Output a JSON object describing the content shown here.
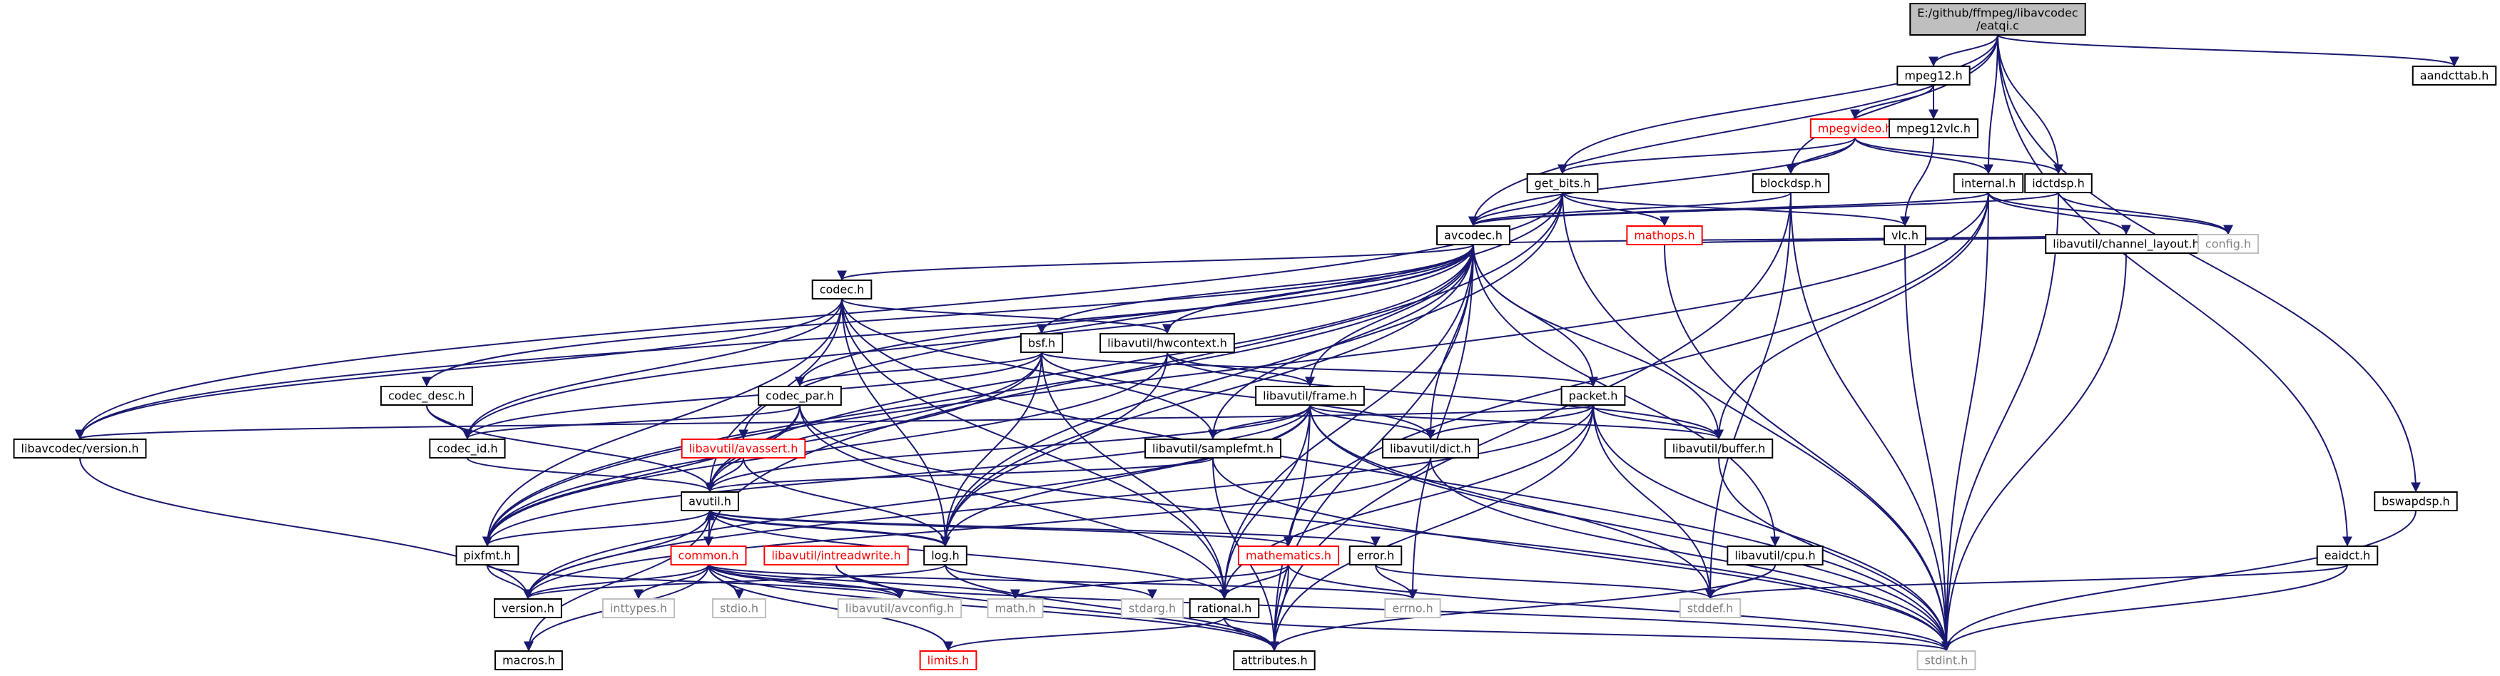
{
  "title": "E:/github/ffmpeg/libavcodec/eatqi.c",
  "colors": {
    "edge": "#191970",
    "root_fill": "#bfbfbf",
    "normal_border": "#000000",
    "truncated_border": "#ff0000",
    "system_border": "#bfbfbf",
    "system_text": "#808080",
    "truncated_text": "#ff0000"
  },
  "nodes": [
    {
      "id": "root",
      "label": [
        "E:/github/ffmpeg/libavcodec",
        "/eatqi.c"
      ],
      "style": "root"
    },
    {
      "id": "mpeg12",
      "label": [
        "mpeg12.h"
      ],
      "style": "normal"
    },
    {
      "id": "aandcttab",
      "label": [
        "aandcttab.h"
      ],
      "style": "normal"
    },
    {
      "id": "mpegvideo",
      "label": [
        "mpegvideo.h"
      ],
      "style": "truncated"
    },
    {
      "id": "mpeg12vlc",
      "label": [
        "mpeg12vlc.h"
      ],
      "style": "normal"
    },
    {
      "id": "get_bits",
      "label": [
        "get_bits.h"
      ],
      "style": "normal"
    },
    {
      "id": "blockdsp",
      "label": [
        "blockdsp.h"
      ],
      "style": "normal"
    },
    {
      "id": "internal",
      "label": [
        "internal.h"
      ],
      "style": "normal"
    },
    {
      "id": "idctdsp",
      "label": [
        "idctdsp.h"
      ],
      "style": "normal"
    },
    {
      "id": "avcodec",
      "label": [
        "avcodec.h"
      ],
      "style": "normal"
    },
    {
      "id": "mathops",
      "label": [
        "mathops.h"
      ],
      "style": "truncated"
    },
    {
      "id": "vlc",
      "label": [
        "vlc.h"
      ],
      "style": "normal"
    },
    {
      "id": "chlayout",
      "label": [
        "libavutil/channel_layout.h"
      ],
      "style": "normal"
    },
    {
      "id": "config",
      "label": [
        "config.h"
      ],
      "style": "system"
    },
    {
      "id": "codec",
      "label": [
        "codec.h"
      ],
      "style": "normal"
    },
    {
      "id": "bsf",
      "label": [
        "bsf.h"
      ],
      "style": "normal"
    },
    {
      "id": "hwcontext",
      "label": [
        "libavutil/hwcontext.h"
      ],
      "style": "normal"
    },
    {
      "id": "codec_desc",
      "label": [
        "codec_desc.h"
      ],
      "style": "normal"
    },
    {
      "id": "codec_par",
      "label": [
        "codec_par.h"
      ],
      "style": "normal"
    },
    {
      "id": "frame",
      "label": [
        "libavutil/frame.h"
      ],
      "style": "normal"
    },
    {
      "id": "packet",
      "label": [
        "packet.h"
      ],
      "style": "normal"
    },
    {
      "id": "lavc_version",
      "label": [
        "libavcodec/version.h"
      ],
      "style": "normal"
    },
    {
      "id": "codec_id",
      "label": [
        "codec_id.h"
      ],
      "style": "normal"
    },
    {
      "id": "avassert",
      "label": [
        "libavutil/avassert.h"
      ],
      "style": "truncated"
    },
    {
      "id": "samplefmt",
      "label": [
        "libavutil/samplefmt.h"
      ],
      "style": "normal"
    },
    {
      "id": "dict",
      "label": [
        "libavutil/dict.h"
      ],
      "style": "normal"
    },
    {
      "id": "buffer",
      "label": [
        "libavutil/buffer.h"
      ],
      "style": "normal"
    },
    {
      "id": "avutil",
      "label": [
        "avutil.h"
      ],
      "style": "normal"
    },
    {
      "id": "pixfmt",
      "label": [
        "pixfmt.h"
      ],
      "style": "normal"
    },
    {
      "id": "common",
      "label": [
        "common.h"
      ],
      "style": "truncated"
    },
    {
      "id": "intreadwrite",
      "label": [
        "libavutil/intreadwrite.h"
      ],
      "style": "truncated"
    },
    {
      "id": "log",
      "label": [
        "log.h"
      ],
      "style": "normal"
    },
    {
      "id": "mathematics",
      "label": [
        "mathematics.h"
      ],
      "style": "truncated"
    },
    {
      "id": "error",
      "label": [
        "error.h"
      ],
      "style": "normal"
    },
    {
      "id": "cpu",
      "label": [
        "libavutil/cpu.h"
      ],
      "style": "normal"
    },
    {
      "id": "eaidct",
      "label": [
        "eaidct.h"
      ],
      "style": "normal"
    },
    {
      "id": "bswapdsp",
      "label": [
        "bswapdsp.h"
      ],
      "style": "normal"
    },
    {
      "id": "version",
      "label": [
        "version.h"
      ],
      "style": "normal"
    },
    {
      "id": "inttypes",
      "label": [
        "inttypes.h"
      ],
      "style": "system"
    },
    {
      "id": "stdio",
      "label": [
        "stdio.h"
      ],
      "style": "system"
    },
    {
      "id": "avconfig",
      "label": [
        "libavutil/avconfig.h"
      ],
      "style": "system"
    },
    {
      "id": "mathh",
      "label": [
        "math.h"
      ],
      "style": "system"
    },
    {
      "id": "stdarg",
      "label": [
        "stdarg.h"
      ],
      "style": "system"
    },
    {
      "id": "rational",
      "label": [
        "rational.h"
      ],
      "style": "normal"
    },
    {
      "id": "errno",
      "label": [
        "errno.h"
      ],
      "style": "system"
    },
    {
      "id": "stddef",
      "label": [
        "stddef.h"
      ],
      "style": "system"
    },
    {
      "id": "macros",
      "label": [
        "macros.h"
      ],
      "style": "normal"
    },
    {
      "id": "limits",
      "label": [
        "limits.h"
      ],
      "style": "truncated"
    },
    {
      "id": "attributes",
      "label": [
        "attributes.h"
      ],
      "style": "normal"
    },
    {
      "id": "stdint",
      "label": [
        "stdint.h"
      ],
      "style": "system"
    }
  ],
  "edges": [
    [
      "root",
      "mpeg12"
    ],
    [
      "root",
      "aandcttab"
    ],
    [
      "root",
      "get_bits"
    ],
    [
      "root",
      "blockdsp"
    ],
    [
      "root",
      "internal"
    ],
    [
      "root",
      "idctdsp"
    ],
    [
      "root",
      "avcodec"
    ],
    [
      "root",
      "eaidct"
    ],
    [
      "root",
      "bswapdsp"
    ],
    [
      "mpeg12",
      "mpegvideo"
    ],
    [
      "mpeg12",
      "mpeg12vlc"
    ],
    [
      "mpegvideo",
      "get_bits"
    ],
    [
      "mpegvideo",
      "blockdsp"
    ],
    [
      "mpegvideo",
      "internal"
    ],
    [
      "mpegvideo",
      "idctdsp"
    ],
    [
      "mpegvideo",
      "avcodec"
    ],
    [
      "mpeg12vlc",
      "vlc"
    ],
    [
      "get_bits",
      "avcodec"
    ],
    [
      "get_bits",
      "mathops"
    ],
    [
      "get_bits",
      "vlc"
    ],
    [
      "get_bits",
      "lavc_version"
    ],
    [
      "get_bits",
      "avassert"
    ],
    [
      "get_bits",
      "stdint"
    ],
    [
      "get_bits",
      "common"
    ],
    [
      "get_bits",
      "log"
    ],
    [
      "blockdsp",
      "avcodec"
    ],
    [
      "blockdsp",
      "stdint"
    ],
    [
      "blockdsp",
      "stddef"
    ],
    [
      "blockdsp",
      "attributes"
    ],
    [
      "internal",
      "avcodec"
    ],
    [
      "internal",
      "buffer"
    ],
    [
      "internal",
      "chlayout"
    ],
    [
      "internal",
      "config"
    ],
    [
      "internal",
      "stdint"
    ],
    [
      "internal",
      "mathematics"
    ],
    [
      "internal",
      "pixfmt"
    ],
    [
      "idctdsp",
      "avcodec"
    ],
    [
      "idctdsp",
      "config"
    ],
    [
      "idctdsp",
      "stdint"
    ],
    [
      "avcodec",
      "codec"
    ],
    [
      "avcodec",
      "bsf"
    ],
    [
      "avcodec",
      "hwcontext"
    ],
    [
      "avcodec",
      "codec_desc"
    ],
    [
      "avcodec",
      "codec_par"
    ],
    [
      "avcodec",
      "frame"
    ],
    [
      "avcodec",
      "packet"
    ],
    [
      "avcodec",
      "lavc_version"
    ],
    [
      "avcodec",
      "codec_id"
    ],
    [
      "avcodec",
      "samplefmt"
    ],
    [
      "avcodec",
      "dict"
    ],
    [
      "avcodec",
      "buffer"
    ],
    [
      "avcodec",
      "avutil"
    ],
    [
      "avcodec",
      "pixfmt"
    ],
    [
      "avcodec",
      "log"
    ],
    [
      "avcodec",
      "rational"
    ],
    [
      "avcodec",
      "attributes"
    ],
    [
      "avcodec",
      "errno"
    ],
    [
      "avcodec",
      "chlayout"
    ],
    [
      "avcodec",
      "cpu"
    ],
    [
      "mathops",
      "config"
    ],
    [
      "mathops",
      "stdint"
    ],
    [
      "vlc",
      "stdint"
    ],
    [
      "chlayout",
      "stdint"
    ],
    [
      "codec",
      "hwcontext"
    ],
    [
      "codec",
      "codec_id"
    ],
    [
      "codec",
      "avutil"
    ],
    [
      "codec",
      "log"
    ],
    [
      "codec",
      "pixfmt"
    ],
    [
      "codec",
      "rational"
    ],
    [
      "codec",
      "samplefmt"
    ],
    [
      "codec",
      "lavc_version"
    ],
    [
      "codec",
      "stdint"
    ],
    [
      "bsf",
      "codec_id"
    ],
    [
      "bsf",
      "codec_par"
    ],
    [
      "bsf",
      "packet"
    ],
    [
      "bsf",
      "dict"
    ],
    [
      "bsf",
      "log"
    ],
    [
      "bsf",
      "rational"
    ],
    [
      "bsf",
      "avutil"
    ],
    [
      "bsf",
      "pixfmt"
    ],
    [
      "hwcontext",
      "frame"
    ],
    [
      "hwcontext",
      "buffer"
    ],
    [
      "hwcontext",
      "pixfmt"
    ],
    [
      "hwcontext",
      "log"
    ],
    [
      "codec_desc",
      "codec_id"
    ],
    [
      "codec_desc",
      "avutil"
    ],
    [
      "codec_par",
      "codec_id"
    ],
    [
      "codec_par",
      "avutil"
    ],
    [
      "codec_par",
      "pixfmt"
    ],
    [
      "codec_par",
      "rational"
    ],
    [
      "codec_par",
      "stdint"
    ],
    [
      "frame",
      "buffer"
    ],
    [
      "frame",
      "dict"
    ],
    [
      "frame",
      "samplefmt"
    ],
    [
      "frame",
      "avutil"
    ],
    [
      "frame",
      "pixfmt"
    ],
    [
      "frame",
      "rational"
    ],
    [
      "frame",
      "version"
    ],
    [
      "frame",
      "stddef"
    ],
    [
      "frame",
      "stdint"
    ],
    [
      "frame",
      "log"
    ],
    [
      "frame",
      "attributes"
    ],
    [
      "packet",
      "buffer"
    ],
    [
      "packet",
      "dict"
    ],
    [
      "packet",
      "rational"
    ],
    [
      "packet",
      "attributes"
    ],
    [
      "packet",
      "stdint"
    ],
    [
      "packet",
      "stddef"
    ],
    [
      "packet",
      "version"
    ],
    [
      "packet",
      "lavc_version"
    ],
    [
      "lavc_version",
      "version"
    ],
    [
      "codec_id",
      "avutil"
    ],
    [
      "avassert",
      "avutil"
    ],
    [
      "avassert",
      "log"
    ],
    [
      "samplefmt",
      "avutil"
    ],
    [
      "samplefmt",
      "attributes"
    ],
    [
      "samplefmt",
      "stdint"
    ],
    [
      "dict",
      "stdint"
    ],
    [
      "dict",
      "version"
    ],
    [
      "buffer",
      "stdint"
    ],
    [
      "avutil",
      "common"
    ],
    [
      "avutil",
      "error"
    ],
    [
      "avutil",
      "rational"
    ],
    [
      "avutil",
      "version"
    ],
    [
      "avutil",
      "macros"
    ],
    [
      "avutil",
      "mathematics"
    ],
    [
      "avutil",
      "log"
    ],
    [
      "avutil",
      "pixfmt"
    ],
    [
      "pixfmt",
      "version"
    ],
    [
      "pixfmt",
      "avconfig"
    ],
    [
      "common",
      "version"
    ],
    [
      "common",
      "macros"
    ],
    [
      "common",
      "inttypes"
    ],
    [
      "common",
      "stdio"
    ],
    [
      "common",
      "avconfig"
    ],
    [
      "common",
      "mathh"
    ],
    [
      "common",
      "limits"
    ],
    [
      "common",
      "attributes"
    ],
    [
      "common",
      "stdint"
    ],
    [
      "common",
      "errno"
    ],
    [
      "intreadwrite",
      "avconfig"
    ],
    [
      "intreadwrite",
      "attributes"
    ],
    [
      "log",
      "avutil"
    ],
    [
      "log",
      "stdarg"
    ],
    [
      "log",
      "attributes"
    ],
    [
      "log",
      "version"
    ],
    [
      "mathematics",
      "rational"
    ],
    [
      "mathematics",
      "mathh"
    ],
    [
      "mathematics",
      "attributes"
    ],
    [
      "mathematics",
      "stdint"
    ],
    [
      "error",
      "errno"
    ],
    [
      "error",
      "stddef"
    ],
    [
      "cpu",
      "stddef"
    ],
    [
      "cpu",
      "attributes"
    ],
    [
      "eaidct",
      "stddef"
    ],
    [
      "eaidct",
      "stdint"
    ],
    [
      "bswapdsp",
      "stdint"
    ],
    [
      "rational",
      "stdint"
    ],
    [
      "rational",
      "limits"
    ],
    [
      "rational",
      "attributes"
    ]
  ]
}
